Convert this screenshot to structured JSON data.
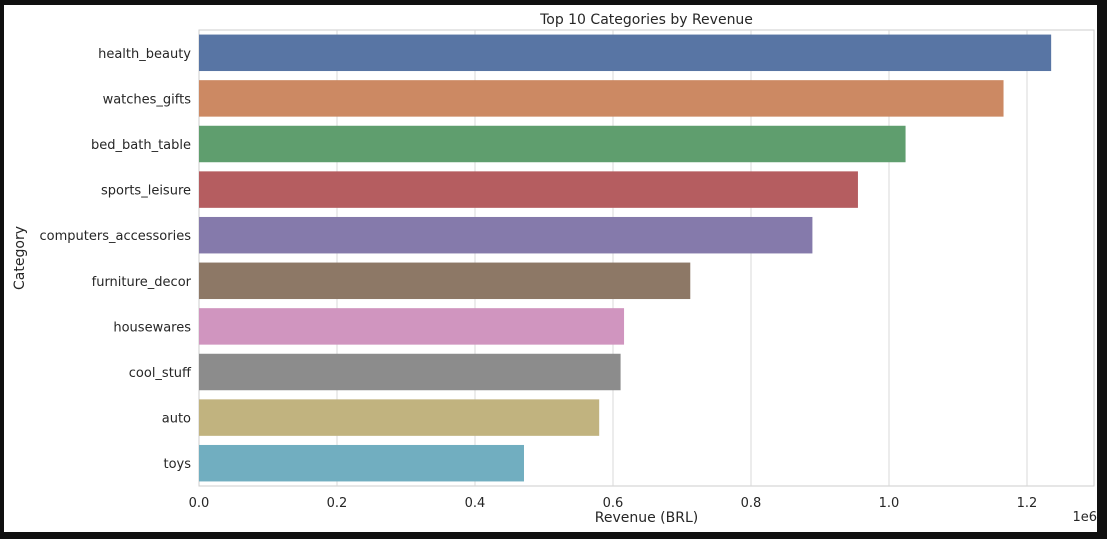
{
  "chart_data": {
    "type": "bar",
    "orientation": "horizontal",
    "title": "Top 10 Categories by Revenue",
    "xlabel": "Revenue (BRL)",
    "ylabel": "Category",
    "x_scale_label": "1e6",
    "xlim": [
      0,
      1.3
    ],
    "xticks": [
      "0.0",
      "0.2",
      "0.4",
      "0.6",
      "0.8",
      "1.0",
      "1.2"
    ],
    "grid": true,
    "categories": [
      "health_beauty",
      "watches_gifts",
      "bed_bath_table",
      "sports_leisure",
      "computers_accessories",
      "furniture_decor",
      "housewares",
      "cool_stuff",
      "auto",
      "toys"
    ],
    "values": [
      1.235,
      1.166,
      1.024,
      0.955,
      0.889,
      0.712,
      0.616,
      0.611,
      0.58,
      0.471
    ],
    "colors": [
      "#5875a4",
      "#cc8963",
      "#5f9e6e",
      "#b55d60",
      "#857aab",
      "#8d7866",
      "#d095bf",
      "#8c8c8c",
      "#c1b37f",
      "#71aec0"
    ]
  }
}
